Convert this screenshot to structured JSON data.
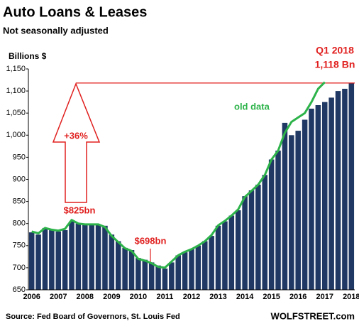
{
  "chart_data": {
    "type": "bar",
    "title": "Auto Loans & Leases",
    "subtitle": "Not seasonally adjusted",
    "y_axis_label": "Billions $",
    "source": "Source: Fed Board of Governors, St. Louis Fed",
    "brand": "WOLFSTREET.com",
    "annotations": [
      "$825bn",
      "$698bn",
      "+36%",
      "Q1 2018",
      "1,118 Bn"
    ],
    "categories": [
      "2006",
      null,
      null,
      null,
      "2007",
      null,
      null,
      null,
      "2008",
      null,
      null,
      null,
      "2009",
      null,
      null,
      null,
      "2010",
      null,
      null,
      null,
      "2011",
      null,
      null,
      null,
      "2012",
      null,
      null,
      null,
      "2013",
      null,
      null,
      null,
      "2014",
      null,
      null,
      null,
      "2015",
      null,
      null,
      null,
      "2016",
      null,
      null,
      null,
      "2017",
      null,
      null,
      null,
      "2018"
    ],
    "values": [
      780,
      775,
      790,
      785,
      782,
      785,
      805,
      800,
      797,
      797,
      797,
      795,
      775,
      760,
      745,
      740,
      722,
      718,
      712,
      705,
      698,
      712,
      728,
      735,
      742,
      750,
      760,
      772,
      795,
      805,
      818,
      830,
      862,
      875,
      888,
      910,
      945,
      965,
      1028,
      1000,
      1010,
      1035,
      1060,
      1068,
      1075,
      1085,
      1100,
      1105,
      1118
    ],
    "color": "#1f3864",
    "old_data": {
      "name": "old data",
      "color": "#2db34a",
      "values": [
        782,
        778,
        790,
        786,
        784,
        788,
        808,
        800,
        798,
        798,
        798,
        792,
        772,
        758,
        744,
        738,
        720,
        716,
        710,
        702,
        700,
        714,
        728,
        736,
        742,
        750,
        760,
        774,
        796,
        806,
        818,
        832,
        860,
        874,
        888,
        910,
        945,
        965,
        1005,
        1030,
        1040,
        1050,
        1075,
        1105,
        1120,
        null,
        null,
        null,
        null
      ]
    },
    "ylim": [
      650,
      1150
    ],
    "yticks": [
      650,
      700,
      750,
      800,
      850,
      900,
      950,
      {
        "value": 1000,
        "label": "1,000"
      },
      {
        "value": 1050,
        "label": "1,050"
      },
      {
        "value": 1100,
        "label": "1,100"
      },
      {
        "value": 1150,
        "label": "1,150"
      }
    ],
    "grid": false
  }
}
